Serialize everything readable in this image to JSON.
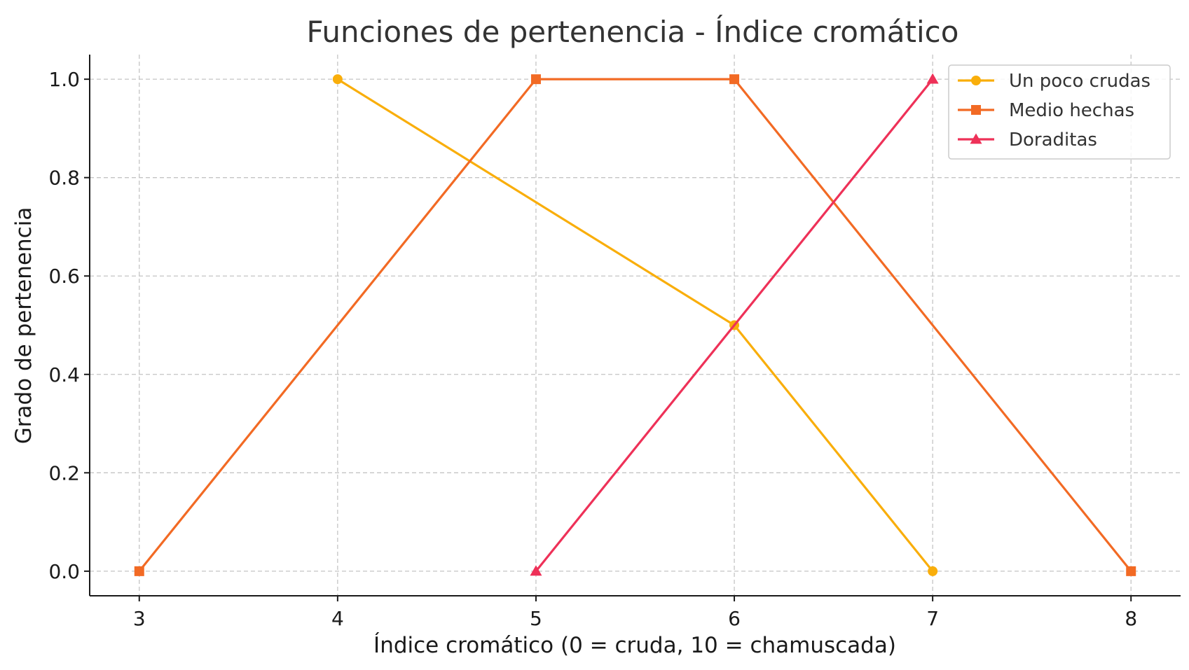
{
  "chart_data": {
    "type": "line",
    "title": "Funciones de pertenencia - Índice cromático",
    "xlabel": "Índice cromático (0 = cruda, 10 = chamuscada)",
    "ylabel": "Grado de pertenencia",
    "xlim": [
      2.75,
      8.25
    ],
    "ylim": [
      -0.05,
      1.05
    ],
    "xticks": [
      3,
      4,
      5,
      6,
      7,
      8
    ],
    "yticks": [
      0.0,
      0.2,
      0.4,
      0.6,
      0.8,
      1.0
    ],
    "xtick_labels": [
      "3",
      "4",
      "5",
      "6",
      "7",
      "8"
    ],
    "ytick_labels": [
      "0.0",
      "0.2",
      "0.4",
      "0.6",
      "0.8",
      "1.0"
    ],
    "grid": true,
    "legend_position": "top-right",
    "series": [
      {
        "name": "Un poco crudas",
        "marker": "circle",
        "color": "#F9AE0B",
        "points": [
          [
            4,
            1.0
          ],
          [
            6,
            0.5
          ],
          [
            7,
            0.0
          ]
        ]
      },
      {
        "name": "Medio hechas",
        "marker": "square",
        "color": "#F26A24",
        "points": [
          [
            3,
            0.0
          ],
          [
            5,
            1.0
          ],
          [
            6,
            1.0
          ],
          [
            8,
            0.0
          ]
        ]
      },
      {
        "name": "Doraditas",
        "marker": "triangle",
        "color": "#EE3158",
        "points": [
          [
            5,
            0.0
          ],
          [
            7,
            1.0
          ]
        ]
      }
    ]
  }
}
